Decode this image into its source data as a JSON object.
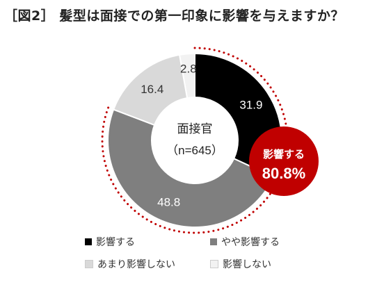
{
  "title": "［図2］ 髪型は面接での第一印象に影響を与えますか？",
  "center_label": {
    "line1": "面接官",
    "line2": "（n=645）"
  },
  "callout": {
    "label": "影響する",
    "value": "80.8%",
    "color": "#c00000"
  },
  "colors": {
    "dotted_arc": "#c00000",
    "value_label_dark": "#ffffff",
    "value_label_light": "#333333"
  },
  "chart_data": {
    "type": "pie",
    "title": "髪型は面接での第一印象に影響を与えますか？",
    "subtitle": "面接官（n=645）",
    "categories": [
      "影響する",
      "やや影響する",
      "あまり影響しない",
      "影響しない"
    ],
    "values": [
      31.9,
      48.8,
      16.4,
      2.8
    ],
    "value_labels": [
      "31.9",
      "48.8",
      "16.4",
      "2.8"
    ],
    "colors": [
      "#000000",
      "#7f7f7f",
      "#d9d9d9",
      "#f2f2f2"
    ],
    "start": "top",
    "direction": "clockwise",
    "donut": true,
    "legend_position": "bottom"
  },
  "legend": [
    {
      "label": "影響する",
      "color": "#000000"
    },
    {
      "label": "やや影響する",
      "color": "#7f7f7f"
    },
    {
      "label": "あまり影響しない",
      "color": "#d9d9d9"
    },
    {
      "label": "影響しない",
      "color": "#f2f2f2"
    }
  ]
}
